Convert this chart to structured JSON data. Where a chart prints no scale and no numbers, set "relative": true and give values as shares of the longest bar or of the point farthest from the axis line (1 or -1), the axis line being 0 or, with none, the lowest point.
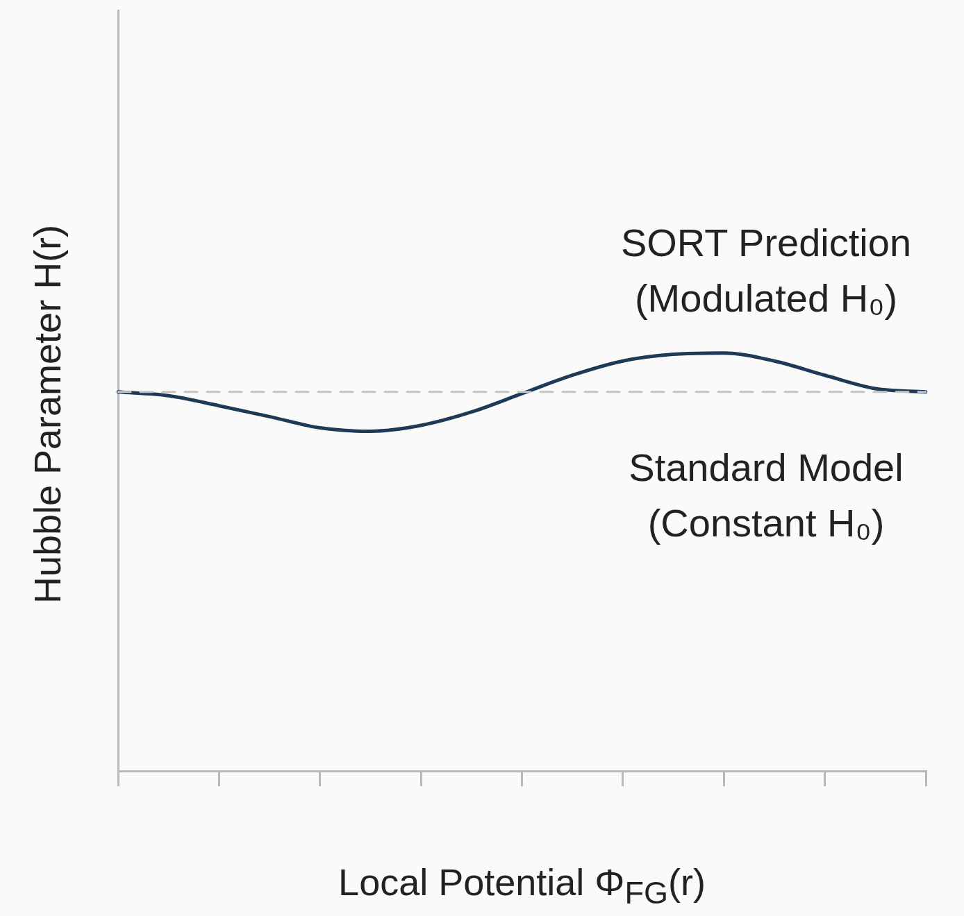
{
  "chart_data": {
    "type": "line",
    "relative": true,
    "xlabel": "Local Potential Φ$_{FG}$(r)",
    "ylabel": "Hubble Parameter H(r)",
    "legend": false,
    "marker": "none",
    "categories": [
      null,
      null,
      null,
      null,
      null,
      null,
      null,
      null,
      null,
      null,
      null,
      null,
      null,
      null,
      null,
      null,
      null
    ],
    "series": [
      {
        "name": "SORT Prediction (Modulated H₀)",
        "color": "#1f3a56",
        "line_style": "solid",
        "values": [
          0.907,
          0.898,
          0.874,
          0.848,
          0.821,
          0.813,
          0.827,
          0.859,
          0.903,
          0.947,
          0.981,
          0.997,
          1,
          0.981,
          0.947,
          0.915,
          0.907
        ]
      },
      {
        "name": "Standard Model (Constant H₀)",
        "color": "#c4c4c4",
        "line_style": "dashed",
        "values": [
          0.907,
          0.907,
          0.907,
          0.907,
          0.907,
          0.907,
          0.907,
          0.907,
          0.907,
          0.907,
          0.907,
          0.907,
          0.907,
          0.907,
          0.907,
          0.907,
          0.907
        ]
      }
    ]
  }
}
